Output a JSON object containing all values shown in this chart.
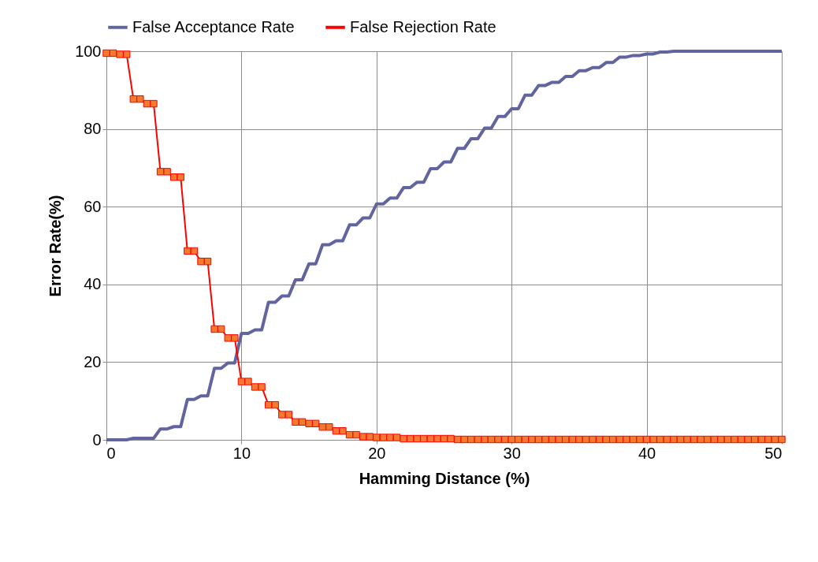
{
  "chart_data": {
    "type": "line",
    "xlabel": "Hamming Distance (%)",
    "ylabel": "Error Rate(%)",
    "xlim": [
      0,
      50
    ],
    "xticks": [
      0,
      10,
      20,
      30,
      40,
      50
    ],
    "ylim": [
      0,
      100
    ],
    "yticks": [
      0,
      20,
      40,
      60,
      80,
      100
    ],
    "grid": true,
    "legend": "top",
    "line_style": "solid",
    "x": [
      0,
      0.5,
      1,
      1.5,
      2,
      2.5,
      3,
      3.5,
      4,
      4.5,
      5,
      5.5,
      6,
      6.5,
      7,
      7.5,
      8,
      8.5,
      9,
      9.5,
      10,
      10.5,
      11,
      11.5,
      12,
      12.5,
      13,
      13.5,
      14,
      14.5,
      15,
      15.5,
      16,
      16.5,
      17,
      17.5,
      18,
      18.5,
      19,
      19.5,
      20,
      20.5,
      21,
      21.5,
      22,
      22.5,
      23,
      23.5,
      24,
      24.5,
      25,
      25.5,
      26,
      26.5,
      27,
      27.5,
      28,
      28.5,
      29,
      29.5,
      30,
      30.5,
      31,
      31.5,
      32,
      32.5,
      33,
      33.5,
      34,
      34.5,
      35,
      35.5,
      36,
      36.5,
      37,
      37.5,
      38,
      38.5,
      39,
      39.5,
      40,
      40.5,
      41,
      41.5,
      42,
      42.5,
      43,
      43.5,
      44,
      44.5,
      45,
      45.5,
      46,
      46.5,
      47,
      47.5,
      48,
      48.5,
      49,
      49.5,
      50
    ],
    "series": [
      {
        "name": "False Acceptance Rate",
        "color": "#6264a0",
        "marker": "none",
        "values": [
          0,
          0,
          0,
          0,
          0.4,
          0.4,
          0.4,
          0.4,
          2.8,
          2.8,
          3.4,
          3.4,
          10.4,
          10.4,
          11.3,
          11.3,
          18.4,
          18.4,
          19.8,
          19.8,
          27.4,
          27.4,
          28.3,
          28.3,
          35.4,
          35.4,
          37,
          37,
          41.2,
          41.2,
          45.3,
          45.3,
          50.2,
          50.2,
          51.2,
          51.2,
          55.3,
          55.3,
          57.1,
          57.1,
          60.7,
          60.7,
          62.2,
          62.2,
          64.9,
          64.9,
          66.3,
          66.3,
          69.8,
          69.8,
          71.5,
          71.5,
          75,
          75,
          77.5,
          77.5,
          80.2,
          80.2,
          83.2,
          83.2,
          85.2,
          85.2,
          88.7,
          88.7,
          91.2,
          91.2,
          92,
          92,
          93.5,
          93.5,
          95,
          95,
          95.8,
          95.8,
          97.1,
          97.1,
          98.5,
          98.5,
          98.9,
          98.9,
          99.3,
          99.3,
          99.8,
          99.8,
          100,
          100,
          100,
          100,
          100,
          100,
          100,
          100,
          100,
          100,
          100,
          100,
          100,
          100,
          100,
          100,
          100
        ]
      },
      {
        "name": "False Rejection Rate",
        "color": "#ff0000",
        "marker": "square",
        "values": [
          99.5,
          99.5,
          99.2,
          99.2,
          87.7,
          87.7,
          86.5,
          86.5,
          69,
          69,
          67.6,
          67.6,
          48.6,
          48.6,
          45.9,
          45.9,
          28.5,
          28.5,
          26.2,
          26.2,
          15,
          15,
          13.6,
          13.6,
          9,
          9,
          6.5,
          6.5,
          4.6,
          4.6,
          4.2,
          4.2,
          3.3,
          3.3,
          2.3,
          2.3,
          1.3,
          1.3,
          0.8,
          0.8,
          0.6,
          0.6,
          0.6,
          0.6,
          0.3,
          0.3,
          0.3,
          0.3,
          0.3,
          0.3,
          0.3,
          0.3,
          0.1,
          0.1,
          0.1,
          0.1,
          0.1,
          0.1,
          0.1,
          0.1,
          0.1,
          0.1,
          0.1,
          0.1,
          0.1,
          0.1,
          0.1,
          0.1,
          0.1,
          0.1,
          0.1,
          0.1,
          0.1,
          0.1,
          0.1,
          0.1,
          0.1,
          0.1,
          0.1,
          0.1,
          0.1,
          0.1,
          0.1,
          0.1,
          0.1,
          0.1,
          0.1,
          0.1,
          0.1,
          0.1,
          0.1,
          0.1,
          0.1,
          0.1,
          0.1,
          0.1,
          0.1,
          0.1,
          0.1,
          0.1,
          0.1
        ]
      }
    ]
  }
}
